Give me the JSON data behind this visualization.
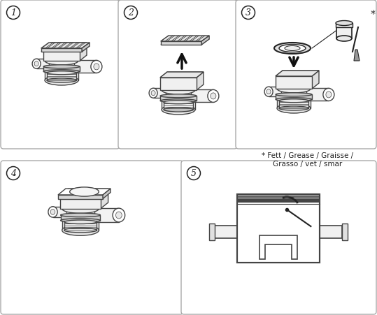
{
  "bg_color": "#ffffff",
  "line_color": "#444444",
  "dark_color": "#222222",
  "panel_border": "#aaaaaa",
  "step_numbers": [
    "1",
    "2",
    "3",
    "4",
    "5"
  ],
  "footnote_line1": "* Fett / Grease / Graisse /",
  "footnote_line2": "Grasso / vet / smar",
  "fig_width": 5.39,
  "fig_height": 4.52,
  "dpi": 100,
  "panels": {
    "p1": [
      5,
      5,
      162,
      205
    ],
    "p2": [
      173,
      5,
      162,
      205
    ],
    "p3": [
      341,
      5,
      193,
      205
    ],
    "p4": [
      5,
      235,
      253,
      212
    ],
    "p5": [
      263,
      235,
      271,
      212
    ]
  }
}
